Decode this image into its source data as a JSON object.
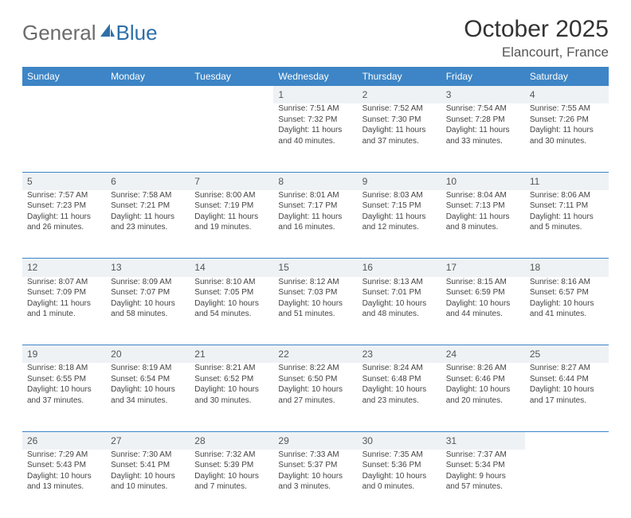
{
  "logo": {
    "text1": "General",
    "text2": "Blue",
    "color1": "#6b6b6b",
    "color2": "#2f6fa8",
    "icon_color": "#2f6fa8"
  },
  "title": "October 2025",
  "location": "Elancourt, France",
  "header_bg": "#3d85c6",
  "daynum_bg": "#eef2f5",
  "rule_color": "#3d85c6",
  "weekdays": [
    "Sunday",
    "Monday",
    "Tuesday",
    "Wednesday",
    "Thursday",
    "Friday",
    "Saturday"
  ],
  "weeks": [
    [
      null,
      null,
      null,
      {
        "n": "1",
        "sr": "7:51 AM",
        "ss": "7:32 PM",
        "dl": "11 hours and 40 minutes."
      },
      {
        "n": "2",
        "sr": "7:52 AM",
        "ss": "7:30 PM",
        "dl": "11 hours and 37 minutes."
      },
      {
        "n": "3",
        "sr": "7:54 AM",
        "ss": "7:28 PM",
        "dl": "11 hours and 33 minutes."
      },
      {
        "n": "4",
        "sr": "7:55 AM",
        "ss": "7:26 PM",
        "dl": "11 hours and 30 minutes."
      }
    ],
    [
      {
        "n": "5",
        "sr": "7:57 AM",
        "ss": "7:23 PM",
        "dl": "11 hours and 26 minutes."
      },
      {
        "n": "6",
        "sr": "7:58 AM",
        "ss": "7:21 PM",
        "dl": "11 hours and 23 minutes."
      },
      {
        "n": "7",
        "sr": "8:00 AM",
        "ss": "7:19 PM",
        "dl": "11 hours and 19 minutes."
      },
      {
        "n": "8",
        "sr": "8:01 AM",
        "ss": "7:17 PM",
        "dl": "11 hours and 16 minutes."
      },
      {
        "n": "9",
        "sr": "8:03 AM",
        "ss": "7:15 PM",
        "dl": "11 hours and 12 minutes."
      },
      {
        "n": "10",
        "sr": "8:04 AM",
        "ss": "7:13 PM",
        "dl": "11 hours and 8 minutes."
      },
      {
        "n": "11",
        "sr": "8:06 AM",
        "ss": "7:11 PM",
        "dl": "11 hours and 5 minutes."
      }
    ],
    [
      {
        "n": "12",
        "sr": "8:07 AM",
        "ss": "7:09 PM",
        "dl": "11 hours and 1 minute."
      },
      {
        "n": "13",
        "sr": "8:09 AM",
        "ss": "7:07 PM",
        "dl": "10 hours and 58 minutes."
      },
      {
        "n": "14",
        "sr": "8:10 AM",
        "ss": "7:05 PM",
        "dl": "10 hours and 54 minutes."
      },
      {
        "n": "15",
        "sr": "8:12 AM",
        "ss": "7:03 PM",
        "dl": "10 hours and 51 minutes."
      },
      {
        "n": "16",
        "sr": "8:13 AM",
        "ss": "7:01 PM",
        "dl": "10 hours and 48 minutes."
      },
      {
        "n": "17",
        "sr": "8:15 AM",
        "ss": "6:59 PM",
        "dl": "10 hours and 44 minutes."
      },
      {
        "n": "18",
        "sr": "8:16 AM",
        "ss": "6:57 PM",
        "dl": "10 hours and 41 minutes."
      }
    ],
    [
      {
        "n": "19",
        "sr": "8:18 AM",
        "ss": "6:55 PM",
        "dl": "10 hours and 37 minutes."
      },
      {
        "n": "20",
        "sr": "8:19 AM",
        "ss": "6:54 PM",
        "dl": "10 hours and 34 minutes."
      },
      {
        "n": "21",
        "sr": "8:21 AM",
        "ss": "6:52 PM",
        "dl": "10 hours and 30 minutes."
      },
      {
        "n": "22",
        "sr": "8:22 AM",
        "ss": "6:50 PM",
        "dl": "10 hours and 27 minutes."
      },
      {
        "n": "23",
        "sr": "8:24 AM",
        "ss": "6:48 PM",
        "dl": "10 hours and 23 minutes."
      },
      {
        "n": "24",
        "sr": "8:26 AM",
        "ss": "6:46 PM",
        "dl": "10 hours and 20 minutes."
      },
      {
        "n": "25",
        "sr": "8:27 AM",
        "ss": "6:44 PM",
        "dl": "10 hours and 17 minutes."
      }
    ],
    [
      {
        "n": "26",
        "sr": "7:29 AM",
        "ss": "5:43 PM",
        "dl": "10 hours and 13 minutes."
      },
      {
        "n": "27",
        "sr": "7:30 AM",
        "ss": "5:41 PM",
        "dl": "10 hours and 10 minutes."
      },
      {
        "n": "28",
        "sr": "7:32 AM",
        "ss": "5:39 PM",
        "dl": "10 hours and 7 minutes."
      },
      {
        "n": "29",
        "sr": "7:33 AM",
        "ss": "5:37 PM",
        "dl": "10 hours and 3 minutes."
      },
      {
        "n": "30",
        "sr": "7:35 AM",
        "ss": "5:36 PM",
        "dl": "10 hours and 0 minutes."
      },
      {
        "n": "31",
        "sr": "7:37 AM",
        "ss": "5:34 PM",
        "dl": "9 hours and 57 minutes."
      },
      null
    ]
  ],
  "labels": {
    "sunrise": "Sunrise:",
    "sunset": "Sunset:",
    "daylight": "Daylight:"
  }
}
